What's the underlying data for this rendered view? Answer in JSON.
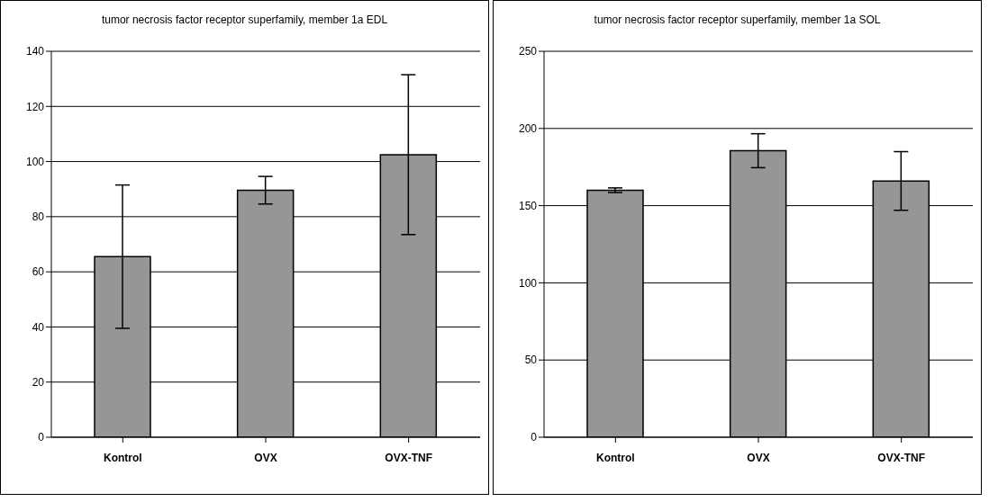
{
  "chart_data": [
    {
      "type": "bar",
      "title": "tumor necrosis factor receptor superfamily, member 1a EDL",
      "categories": [
        "Kontrol",
        "OVX",
        "OVX-TNF"
      ],
      "values": [
        65.5,
        89.6,
        102.5
      ],
      "errors": [
        26,
        5,
        29
      ],
      "color": "#969696",
      "ylim": [
        0,
        140
      ],
      "yticks": [
        0,
        20,
        40,
        60,
        80,
        100,
        120,
        140
      ],
      "grid": "y"
    },
    {
      "type": "bar",
      "title": "tumor necrosis factor receptor superfamily, member 1a SOL",
      "categories": [
        "Kontrol",
        "OVX",
        "OVX-TNF"
      ],
      "values": [
        160,
        185.6,
        166
      ],
      "errors": [
        1.5,
        11,
        19
      ],
      "color": "#969696",
      "ylim": [
        0,
        250
      ],
      "yticks": [
        0,
        50,
        100,
        150,
        200,
        250
      ],
      "grid": "y"
    }
  ]
}
